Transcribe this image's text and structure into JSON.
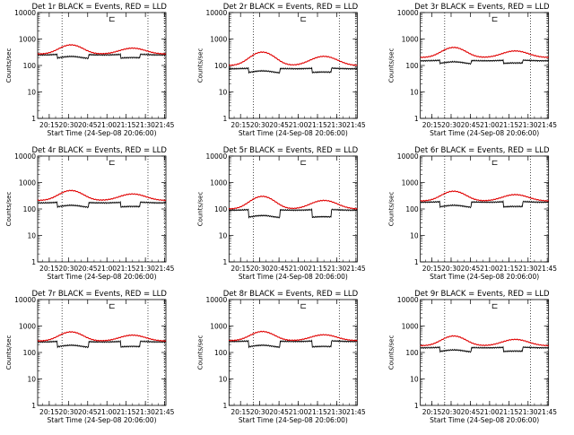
{
  "chart_data": [
    {
      "type": "line",
      "title": "Det 1r BLACK = Events, RED = LLD",
      "ylabel": "Counts/sec",
      "xlabel": "Start Time (24-Sep-08 20:06:00)",
      "ylim": [
        1,
        10000
      ],
      "yscale": "log",
      "x_ticks": [
        "20:15",
        "20:30",
        "20:45",
        "21:00",
        "21:15",
        "21:30",
        "21:45"
      ],
      "y_ticks": [
        "1",
        "10",
        "100",
        "1000",
        "10000"
      ],
      "marker_symbol": "⊏",
      "red_base": 270,
      "red_peak": 600,
      "black_base": 250,
      "black_low": 175
    },
    {
      "type": "line",
      "title": "Det 2r BLACK = Events, RED = LLD",
      "ylabel": "Counts/sec",
      "xlabel": "Start Time (24-Sep-08 20:06:00)",
      "ylim": [
        1,
        10000
      ],
      "yscale": "log",
      "x_ticks": [
        "20:15",
        "20:30",
        "20:45",
        "21:00",
        "21:15",
        "21:30",
        "21:45"
      ],
      "y_ticks": [
        "1",
        "10",
        "100",
        "1000",
        "10000"
      ],
      "marker_symbol": "⊏",
      "red_base": 100,
      "red_peak": 320,
      "black_base": 75,
      "black_low": 50
    },
    {
      "type": "line",
      "title": "Det 3r BLACK = Events, RED = LLD",
      "ylabel": "Counts/sec",
      "xlabel": "Start Time (24-Sep-08 20:06:00)",
      "ylim": [
        1,
        10000
      ],
      "yscale": "log",
      "x_ticks": [
        "20:15",
        "20:30",
        "20:45",
        "21:00",
        "21:15",
        "21:30",
        "21:45"
      ],
      "y_ticks": [
        "1",
        "10",
        "100",
        "1000",
        "10000"
      ],
      "marker_symbol": "⊏",
      "red_base": 200,
      "red_peak": 480,
      "black_base": 150,
      "black_low": 110
    },
    {
      "type": "line",
      "title": "Det 4r BLACK = Events, RED = LLD",
      "ylabel": "Counts/sec",
      "xlabel": "Start Time (24-Sep-08 20:06:00)",
      "ylim": [
        1,
        10000
      ],
      "yscale": "log",
      "x_ticks": [
        "20:15",
        "20:30",
        "20:45",
        "21:00",
        "21:15",
        "21:30",
        "21:45"
      ],
      "y_ticks": [
        "1",
        "10",
        "100",
        "1000",
        "10000"
      ],
      "marker_symbol": "⊏",
      "red_base": 210,
      "red_peak": 500,
      "black_base": 170,
      "black_low": 110
    },
    {
      "type": "line",
      "title": "Det 5r BLACK = Events, RED = LLD",
      "ylabel": "Counts/sec",
      "xlabel": "Start Time (24-Sep-08 20:06:00)",
      "ylim": [
        1,
        10000
      ],
      "yscale": "log",
      "x_ticks": [
        "20:15",
        "20:30",
        "20:45",
        "21:00",
        "21:15",
        "21:30",
        "21:45"
      ],
      "y_ticks": [
        "1",
        "10",
        "100",
        "1000",
        "10000"
      ],
      "marker_symbol": "⊏",
      "red_base": 100,
      "red_peak": 300,
      "black_base": 90,
      "black_low": 45
    },
    {
      "type": "line",
      "title": "Det 6r BLACK = Events, RED = LLD",
      "ylabel": "Counts/sec",
      "xlabel": "Start Time (24-Sep-08 20:06:00)",
      "ylim": [
        1,
        10000
      ],
      "yscale": "log",
      "x_ticks": [
        "20:15",
        "20:30",
        "20:45",
        "21:00",
        "21:15",
        "21:30",
        "21:45"
      ],
      "y_ticks": [
        "1",
        "10",
        "100",
        "1000",
        "10000"
      ],
      "marker_symbol": "⊏",
      "red_base": 200,
      "red_peak": 470,
      "black_base": 180,
      "black_low": 110
    },
    {
      "type": "line",
      "title": "Det 7r BLACK = Events, RED = LLD",
      "ylabel": "Counts/sec",
      "xlabel": "Start Time (24-Sep-08 20:06:00)",
      "ylim": [
        1,
        10000
      ],
      "yscale": "log",
      "x_ticks": [
        "20:15",
        "20:30",
        "20:45",
        "21:00",
        "21:15",
        "21:30",
        "21:45"
      ],
      "y_ticks": [
        "1",
        "10",
        "100",
        "1000",
        "10000"
      ],
      "marker_symbol": "⊏",
      "red_base": 270,
      "red_peak": 600,
      "black_base": 250,
      "black_low": 150
    },
    {
      "type": "line",
      "title": "Det 8r BLACK = Events, RED = LLD",
      "ylabel": "Counts/sec",
      "xlabel": "Start Time (24-Sep-08 20:06:00)",
      "ylim": [
        1,
        10000
      ],
      "yscale": "log",
      "x_ticks": [
        "20:15",
        "20:30",
        "20:45",
        "21:00",
        "21:15",
        "21:30",
        "21:45"
      ],
      "y_ticks": [
        "1",
        "10",
        "100",
        "1000",
        "10000"
      ],
      "marker_symbol": "⊏",
      "red_base": 280,
      "red_peak": 620,
      "black_base": 260,
      "black_low": 150
    },
    {
      "type": "line",
      "title": "Det 9r BLACK = Events, RED = LLD",
      "ylabel": "Counts/sec",
      "xlabel": "Start Time (24-Sep-08 20:06:00)",
      "ylim": [
        1,
        10000
      ],
      "yscale": "log",
      "x_ticks": [
        "20:15",
        "20:30",
        "20:45",
        "21:00",
        "21:15",
        "21:30",
        "21:45"
      ],
      "y_ticks": [
        "1",
        "10",
        "100",
        "1000",
        "10000"
      ],
      "marker_symbol": "⊏",
      "red_base": 180,
      "red_peak": 420,
      "black_base": 150,
      "black_low": 100
    }
  ],
  "colors": {
    "red_series": "#e00000",
    "black_series": "#000000",
    "background": "#ffffff"
  }
}
